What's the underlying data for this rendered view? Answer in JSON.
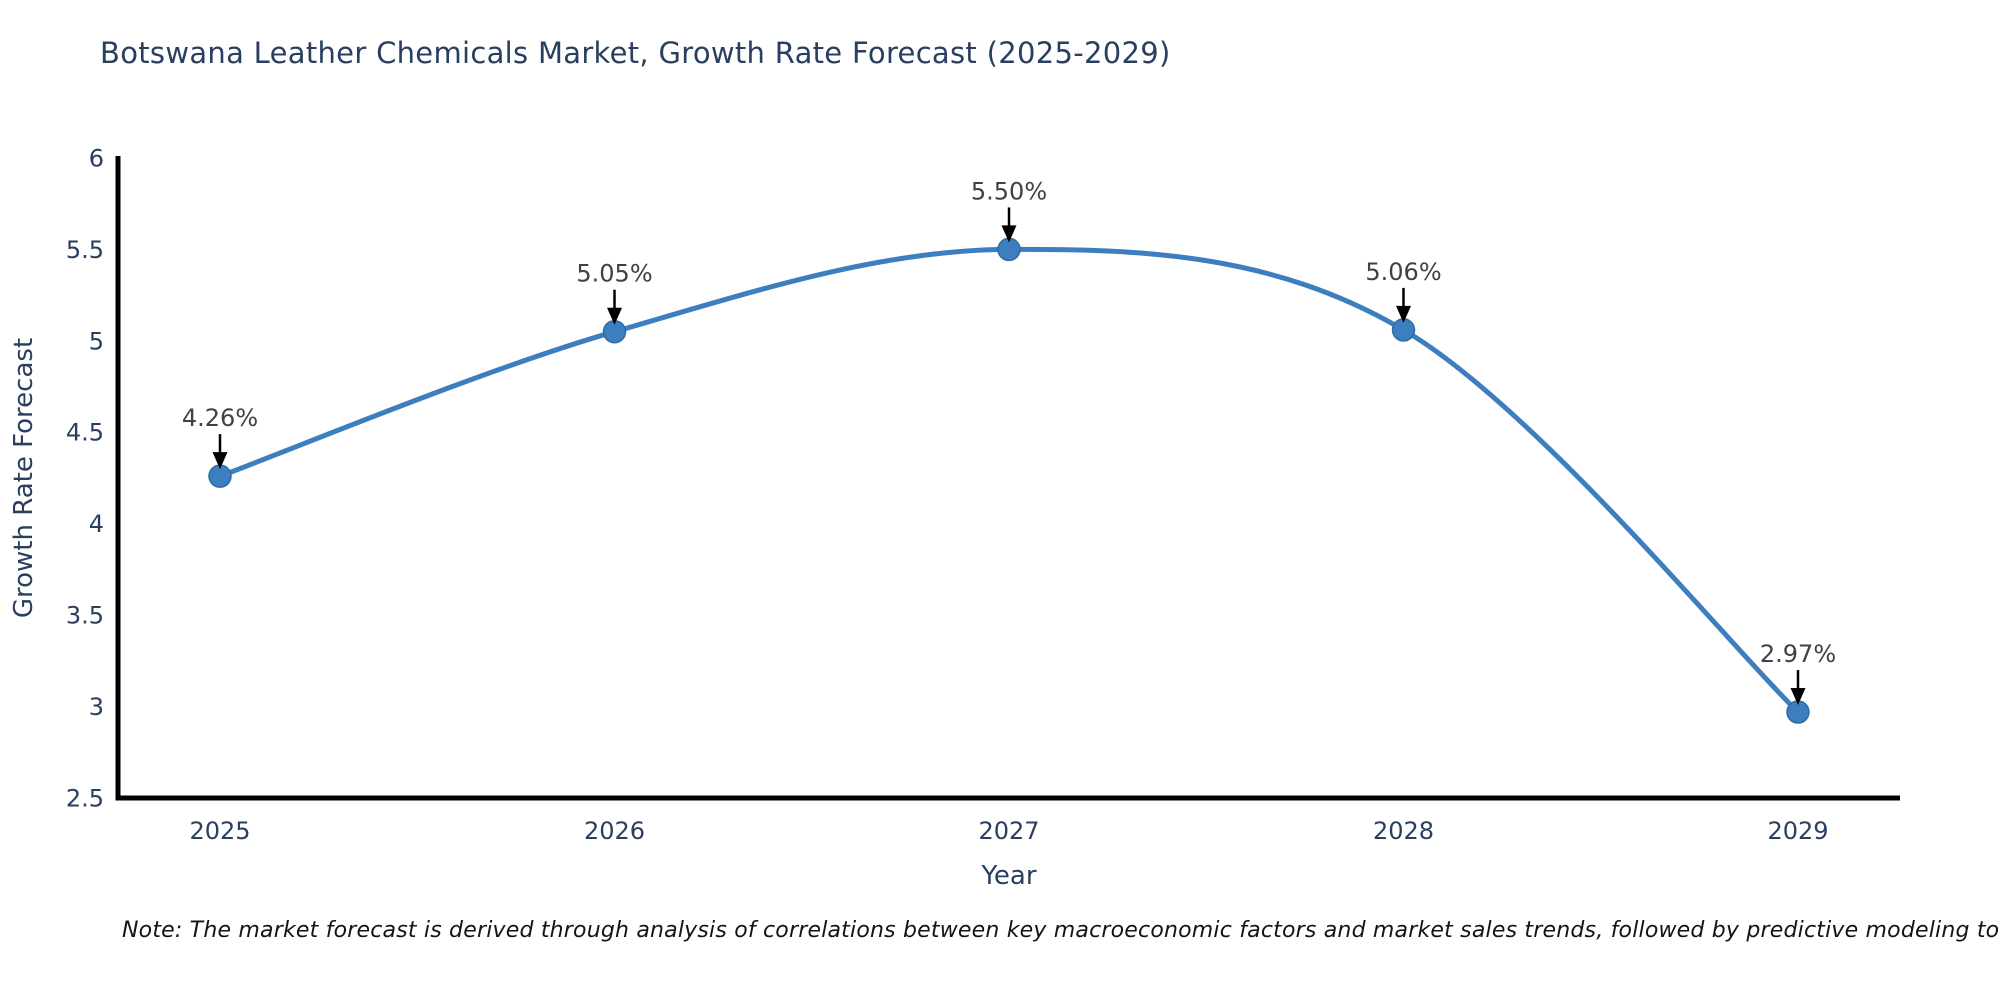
{
  "note": "Note: The market forecast is derived through analysis of correlations between key macroeconomic factors and market sales trends, followed by predictive modeling to project future sales",
  "chart_data": {
    "type": "line",
    "title": "Botswana Leather Chemicals Market, Growth Rate Forecast (2025-2029)",
    "xlabel": "Year",
    "ylabel": "Growth Rate Forecast",
    "categories": [
      "2025",
      "2026",
      "2027",
      "2028",
      "2029"
    ],
    "series": [
      {
        "name": "Growth Rate Forecast",
        "values": [
          4.26,
          5.05,
          5.5,
          5.06,
          2.97
        ],
        "point_labels": [
          "4.26%",
          "5.05%",
          "5.50%",
          "5.06%",
          "2.97%"
        ]
      }
    ],
    "ylim": [
      2.5,
      6
    ],
    "yticks": [
      2.5,
      3,
      3.5,
      4,
      4.5,
      5,
      5.5,
      6
    ],
    "grid": false,
    "legend": "none",
    "line_shape": "spline",
    "marker": "circle",
    "annotation_arrows": true,
    "colors": {
      "line": "#3d7ebf",
      "marker_fill": "#3d7ebf",
      "marker_edge": "#2e6da4",
      "axis_line": "#000000",
      "axis_text": "#2a3f5f",
      "annotation_text": "#3d4149",
      "arrow": "#000000",
      "note_text": "#141414",
      "background": "#ffffff"
    }
  }
}
